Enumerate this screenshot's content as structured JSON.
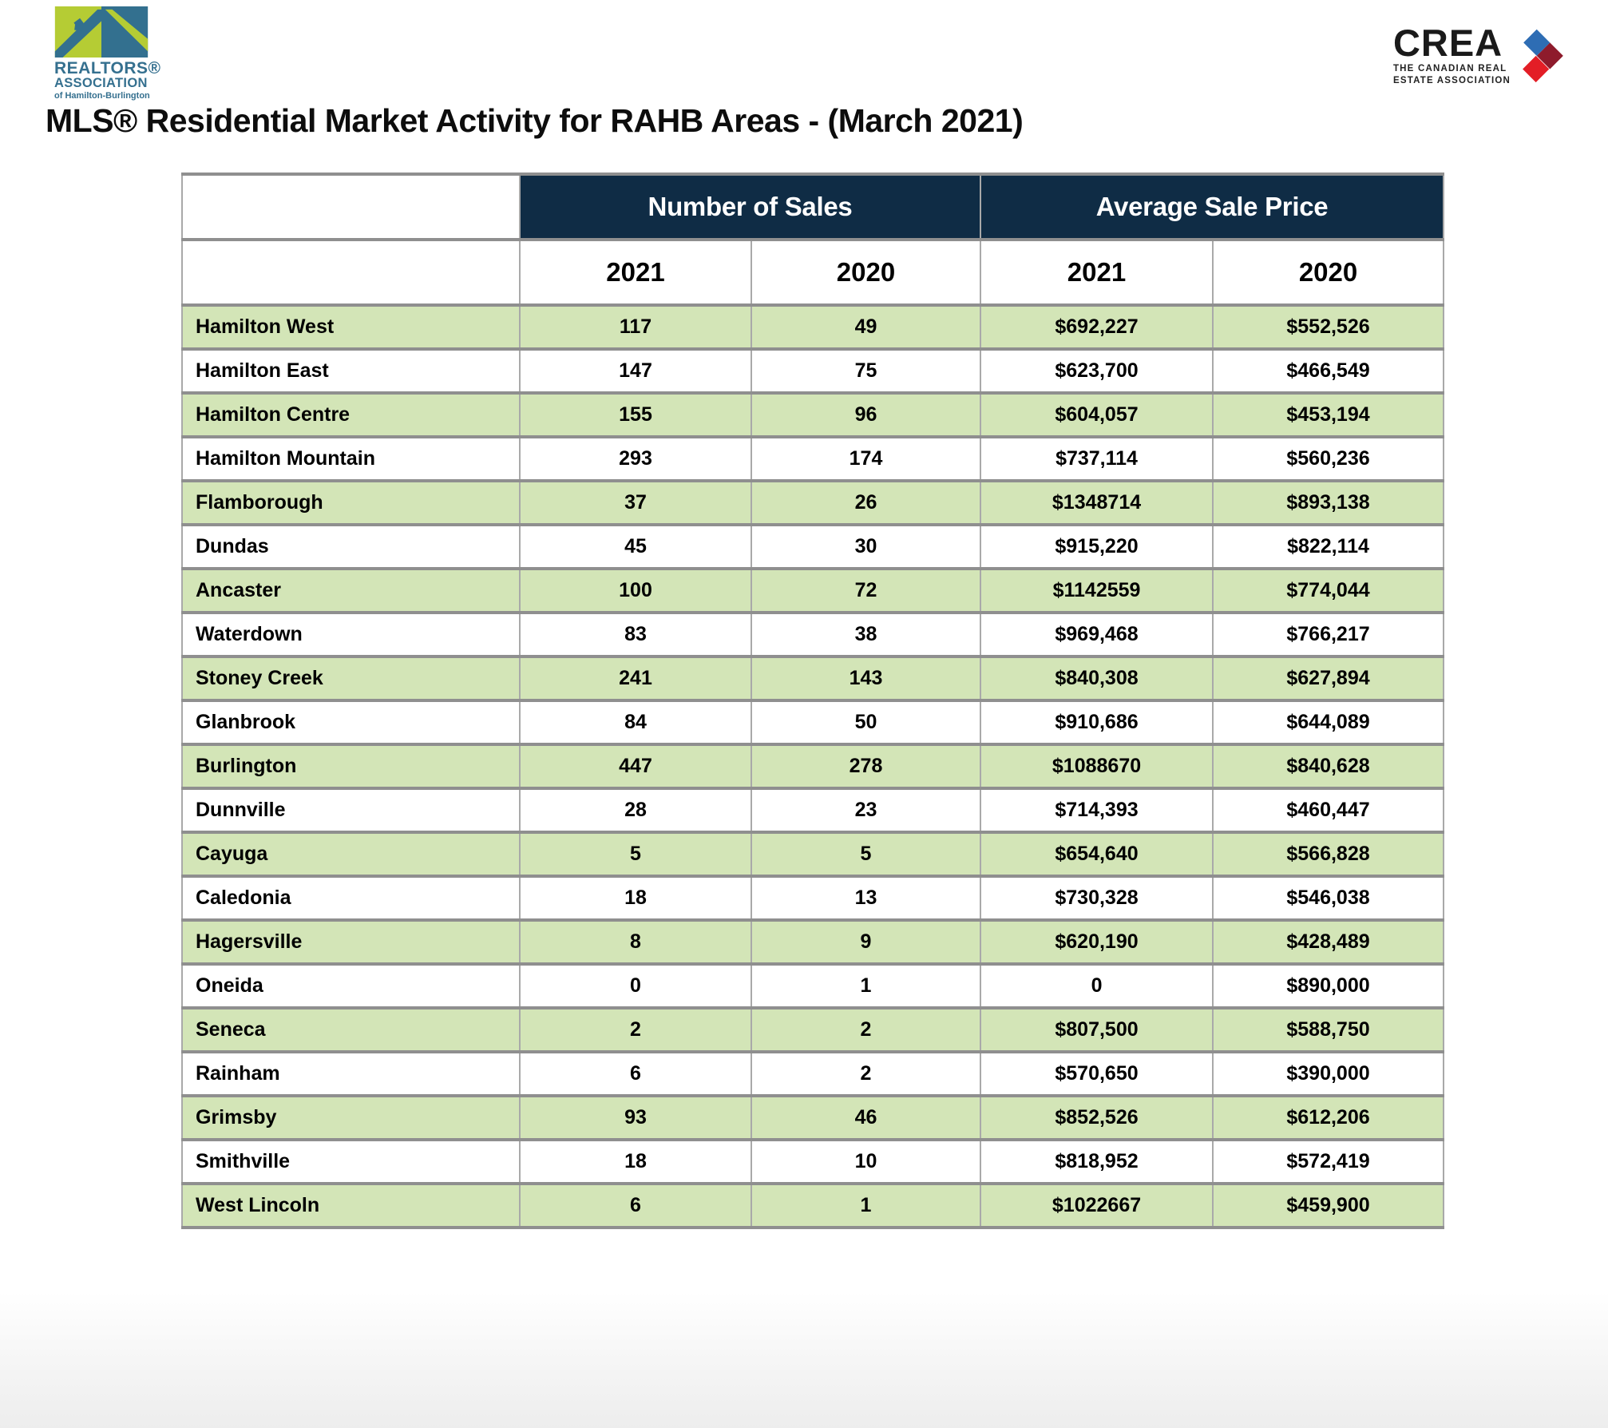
{
  "title": "MLS® Residential Market Activity for RAHB Areas - (March 2021)",
  "logos": {
    "rahb": {
      "line1": "REALTORS®",
      "line2": "ASSOCIATION",
      "line3": "of Hamilton-Burlington"
    },
    "crea": {
      "name": "CREA",
      "tagline1": "THE CANADIAN REAL",
      "tagline2": "ESTATE ASSOCIATION"
    }
  },
  "colors": {
    "header_navy": "#0f2c45",
    "row_green": "#d3e5b7",
    "border_gray": "#8f8f8f",
    "rahb_blue": "#35708f",
    "rahb_green": "#b5cc34",
    "crea_blue": "#2e6db4",
    "crea_maroon": "#8e1b2c",
    "crea_red": "#e31e26"
  },
  "table": {
    "group_headers": [
      "Number of Sales",
      "Average Sale Price"
    ],
    "year_headers": [
      "2021",
      "2020",
      "2021",
      "2020"
    ],
    "rows": [
      {
        "area": "Hamilton West",
        "sales_2021": "117",
        "sales_2020": "49",
        "price_2021": "$692,227",
        "price_2020": "$552,526"
      },
      {
        "area": "Hamilton East",
        "sales_2021": "147",
        "sales_2020": "75",
        "price_2021": "$623,700",
        "price_2020": "$466,549"
      },
      {
        "area": "Hamilton Centre",
        "sales_2021": "155",
        "sales_2020": "96",
        "price_2021": "$604,057",
        "price_2020": "$453,194"
      },
      {
        "area": "Hamilton Mountain",
        "sales_2021": "293",
        "sales_2020": "174",
        "price_2021": "$737,114",
        "price_2020": "$560,236"
      },
      {
        "area": "Flamborough",
        "sales_2021": "37",
        "sales_2020": "26",
        "price_2021": "$1348714",
        "price_2020": "$893,138"
      },
      {
        "area": "Dundas",
        "sales_2021": "45",
        "sales_2020": "30",
        "price_2021": "$915,220",
        "price_2020": "$822,114"
      },
      {
        "area": "Ancaster",
        "sales_2021": "100",
        "sales_2020": "72",
        "price_2021": "$1142559",
        "price_2020": "$774,044"
      },
      {
        "area": "Waterdown",
        "sales_2021": "83",
        "sales_2020": "38",
        "price_2021": "$969,468",
        "price_2020": "$766,217"
      },
      {
        "area": "Stoney Creek",
        "sales_2021": "241",
        "sales_2020": "143",
        "price_2021": "$840,308",
        "price_2020": "$627,894"
      },
      {
        "area": "Glanbrook",
        "sales_2021": "84",
        "sales_2020": "50",
        "price_2021": "$910,686",
        "price_2020": "$644,089"
      },
      {
        "area": "Burlington",
        "sales_2021": "447",
        "sales_2020": "278",
        "price_2021": "$1088670",
        "price_2020": "$840,628"
      },
      {
        "area": "Dunnville",
        "sales_2021": "28",
        "sales_2020": "23",
        "price_2021": "$714,393",
        "price_2020": "$460,447"
      },
      {
        "area": "Cayuga",
        "sales_2021": "5",
        "sales_2020": "5",
        "price_2021": "$654,640",
        "price_2020": "$566,828"
      },
      {
        "area": "Caledonia",
        "sales_2021": "18",
        "sales_2020": "13",
        "price_2021": "$730,328",
        "price_2020": "$546,038"
      },
      {
        "area": "Hagersville",
        "sales_2021": "8",
        "sales_2020": "9",
        "price_2021": "$620,190",
        "price_2020": "$428,489"
      },
      {
        "area": "Oneida",
        "sales_2021": "0",
        "sales_2020": "1",
        "price_2021": "0",
        "price_2020": "$890,000"
      },
      {
        "area": "Seneca",
        "sales_2021": "2",
        "sales_2020": "2",
        "price_2021": "$807,500",
        "price_2020": "$588,750"
      },
      {
        "area": "Rainham",
        "sales_2021": "6",
        "sales_2020": "2",
        "price_2021": "$570,650",
        "price_2020": "$390,000"
      },
      {
        "area": "Grimsby",
        "sales_2021": "93",
        "sales_2020": "46",
        "price_2021": "$852,526",
        "price_2020": "$612,206"
      },
      {
        "area": "Smithville",
        "sales_2021": "18",
        "sales_2020": "10",
        "price_2021": "$818,952",
        "price_2020": "$572,419"
      },
      {
        "area": "West Lincoln",
        "sales_2021": "6",
        "sales_2020": "1",
        "price_2021": "$1022667",
        "price_2020": "$459,900"
      }
    ]
  }
}
